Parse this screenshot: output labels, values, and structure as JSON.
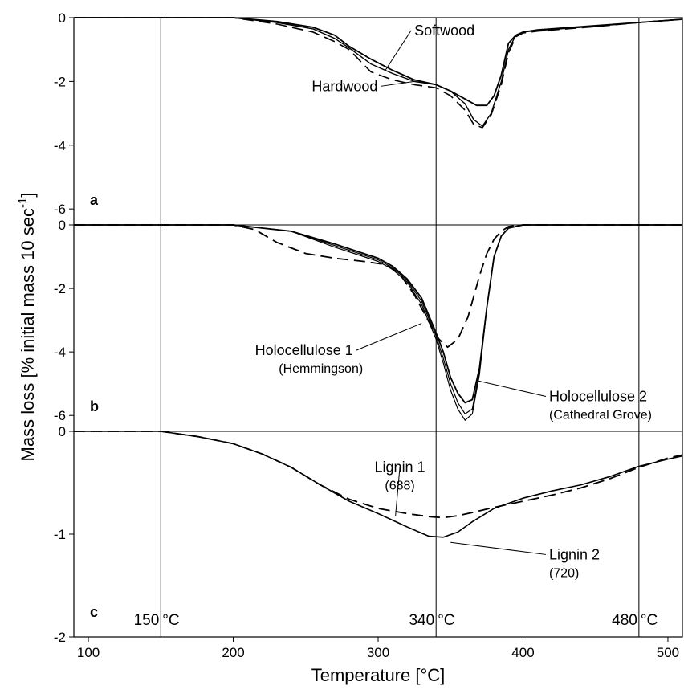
{
  "chart_data": {
    "type": "line",
    "xlabel": "Temperature [°C]",
    "ylabel": "Mass loss [% initial mass 10 sec",
    "ylabel_sup": "-1",
    "ylabel_end": "]",
    "xlim": [
      90,
      510
    ],
    "xticks": [
      "100",
      "200",
      "300",
      "400",
      "500"
    ],
    "vlines": [
      {
        "x": 150,
        "label": "150 °C"
      },
      {
        "x": 340,
        "label": "340 °C"
      },
      {
        "x": 480,
        "label": "480 °C"
      }
    ],
    "panels": [
      {
        "letter": "a",
        "ylim": [
          -6.5,
          0
        ],
        "yticks": [
          "0",
          "-2",
          "-4",
          "-6"
        ],
        "yticks_values": [
          0,
          -2,
          -4,
          -6
        ],
        "annotations": [
          {
            "text": "Softwood",
            "sub": "",
            "x": 325,
            "y": -0.5,
            "target": [
              305,
              -1.65
            ]
          },
          {
            "text": "Hardwood",
            "sub": "",
            "x": 262,
            "y": -2.25,
            "target": [
              325,
              -2.0
            ]
          }
        ],
        "series": [
          {
            "style": "solid",
            "width": 1.8,
            "x": [
              90,
              150,
              200,
              230,
              255,
              270,
              280,
              295,
              310,
              325,
              340,
              350,
              360,
              368,
              375,
              380,
              385,
              390,
              395,
              400,
              410,
              450,
              480,
              510
            ],
            "y": [
              0,
              0,
              0,
              -0.12,
              -0.3,
              -0.55,
              -0.9,
              -1.3,
              -1.65,
              -1.95,
              -2.1,
              -2.3,
              -2.55,
              -2.75,
              -2.75,
              -2.45,
              -1.8,
              -0.8,
              -0.55,
              -0.45,
              -0.38,
              -0.25,
              -0.15,
              -0.05
            ]
          },
          {
            "style": "solid",
            "width": 1.4,
            "x": [
              90,
              150,
              200,
              230,
              255,
              270,
              280,
              295,
              310,
              325,
              340,
              350,
              360,
              366,
              372,
              378,
              385,
              390,
              395,
              400,
              410,
              450,
              480,
              510
            ],
            "y": [
              0,
              0,
              0,
              -0.15,
              -0.35,
              -0.65,
              -0.95,
              -1.45,
              -1.75,
              -2.0,
              -2.1,
              -2.3,
              -2.7,
              -3.2,
              -3.4,
              -3.0,
              -2.0,
              -1.0,
              -0.55,
              -0.45,
              -0.4,
              -0.27,
              -0.15,
              -0.05
            ]
          },
          {
            "style": "dashed",
            "width": 1.6,
            "x": [
              90,
              150,
              200,
              230,
              255,
              270,
              280,
              295,
              310,
              325,
              340,
              350,
              360,
              366,
              372,
              378,
              385,
              390,
              395,
              400,
              410,
              450,
              480,
              510
            ],
            "y": [
              0,
              0,
              0,
              -0.2,
              -0.45,
              -0.75,
              -1.0,
              -1.7,
              -1.95,
              -2.1,
              -2.2,
              -2.45,
              -2.9,
              -3.35,
              -3.45,
              -3.05,
              -2.1,
              -1.1,
              -0.6,
              -0.48,
              -0.42,
              -0.28,
              -0.15,
              -0.05
            ]
          }
        ]
      },
      {
        "letter": "b",
        "ylim": [
          -6.5,
          0
        ],
        "yticks": [
          "0",
          "-2",
          "-4",
          "-6"
        ],
        "yticks_values": [
          0,
          -2,
          -4,
          -6
        ],
        "annotations": [
          {
            "text": "Holocellulose 1",
            "sub": "(Hemmingson)",
            "x": 245,
            "y": -4.05,
            "target": [
              330,
              -3.1
            ]
          },
          {
            "text": "Holocellulose 2",
            "sub": "(Cathedral Grove)",
            "x": 418,
            "y": -5.5,
            "target": [
              368,
              -4.9
            ]
          }
        ],
        "series": [
          {
            "style": "solid",
            "width": 1.8,
            "x": [
              90,
              150,
              200,
              240,
              270,
              290,
              300,
              310,
              320,
              330,
              340,
              345,
              350,
              355,
              360,
              365,
              370,
              375,
              380,
              385,
              390,
              400,
              450,
              510
            ],
            "y": [
              0,
              0,
              0,
              -0.2,
              -0.6,
              -0.9,
              -1.05,
              -1.3,
              -1.7,
              -2.3,
              -3.4,
              -4.0,
              -4.8,
              -5.3,
              -5.6,
              -5.5,
              -4.5,
              -2.6,
              -1.0,
              -0.35,
              -0.1,
              0,
              0,
              0
            ]
          },
          {
            "style": "solid",
            "width": 1.2,
            "x": [
              90,
              150,
              200,
              240,
              270,
              290,
              300,
              310,
              320,
              330,
              340,
              345,
              350,
              355,
              360,
              365,
              370,
              375,
              380,
              385,
              390,
              400,
              450,
              510
            ],
            "y": [
              0,
              0,
              0,
              -0.2,
              -0.65,
              -0.95,
              -1.1,
              -1.35,
              -1.75,
              -2.4,
              -3.5,
              -4.2,
              -5.0,
              -5.6,
              -5.95,
              -5.8,
              -4.6,
              -2.6,
              -1.0,
              -0.35,
              -0.1,
              0,
              0,
              0
            ]
          },
          {
            "style": "solid",
            "width": 1.2,
            "x": [
              90,
              150,
              200,
              240,
              270,
              290,
              300,
              310,
              320,
              330,
              340,
              345,
              350,
              355,
              360,
              365,
              370,
              375,
              380,
              385,
              390,
              400,
              450,
              510
            ],
            "y": [
              0,
              0,
              0,
              -0.2,
              -0.7,
              -1.0,
              -1.15,
              -1.4,
              -1.8,
              -2.5,
              -3.6,
              -4.35,
              -5.2,
              -5.8,
              -6.15,
              -5.95,
              -4.7,
              -2.6,
              -1.0,
              -0.35,
              -0.1,
              0,
              0,
              0
            ]
          },
          {
            "style": "dashed",
            "width": 1.8,
            "x": [
              90,
              150,
              200,
              215,
              230,
              250,
              270,
              290,
              305,
              315,
              325,
              335,
              342,
              348,
              355,
              362,
              370,
              375,
              380,
              385,
              390,
              400,
              450,
              510
            ],
            "y": [
              0,
              0,
              0,
              -0.15,
              -0.55,
              -0.9,
              -1.05,
              -1.15,
              -1.25,
              -1.55,
              -2.2,
              -3.05,
              -3.6,
              -3.85,
              -3.6,
              -2.9,
              -1.6,
              -0.9,
              -0.45,
              -0.2,
              -0.05,
              0,
              0,
              0
            ]
          }
        ]
      },
      {
        "letter": "c",
        "ylim": [
          -2,
          0
        ],
        "yticks": [
          "0",
          "-1",
          "-2"
        ],
        "yticks_values": [
          0,
          -1,
          -2
        ],
        "annotations": [
          {
            "text": "Lignin 1",
            "sub": "(688)",
            "x": 315,
            "y": -0.38,
            "target": [
              312,
              -0.82
            ]
          },
          {
            "text": "Lignin 2",
            "sub": "(720)",
            "x": 418,
            "y": -1.23,
            "target": [
              350,
              -1.08
            ]
          }
        ],
        "series": [
          {
            "style": "solid",
            "width": 1.6,
            "x": [
              90,
              150,
              175,
              200,
              220,
              240,
              260,
              280,
              300,
              320,
              335,
              345,
              355,
              365,
              380,
              400,
              420,
              440,
              460,
              480,
              500,
              510
            ],
            "y": [
              0,
              0,
              -0.05,
              -0.12,
              -0.22,
              -0.35,
              -0.52,
              -0.68,
              -0.8,
              -0.93,
              -1.02,
              -1.03,
              -0.98,
              -0.88,
              -0.75,
              -0.65,
              -0.58,
              -0.52,
              -0.44,
              -0.34,
              -0.27,
              -0.24
            ]
          },
          {
            "style": "dashed",
            "width": 1.8,
            "x": [
              90,
              150,
              175,
              200,
              220,
              240,
              260,
              280,
              300,
              320,
              335,
              345,
              355,
              365,
              380,
              400,
              420,
              440,
              460,
              480,
              500,
              510
            ],
            "y": [
              0,
              0,
              -0.05,
              -0.12,
              -0.22,
              -0.35,
              -0.52,
              -0.66,
              -0.75,
              -0.8,
              -0.83,
              -0.84,
              -0.82,
              -0.79,
              -0.74,
              -0.68,
              -0.62,
              -0.55,
              -0.46,
              -0.35,
              -0.26,
              -0.23
            ]
          }
        ]
      }
    ]
  }
}
